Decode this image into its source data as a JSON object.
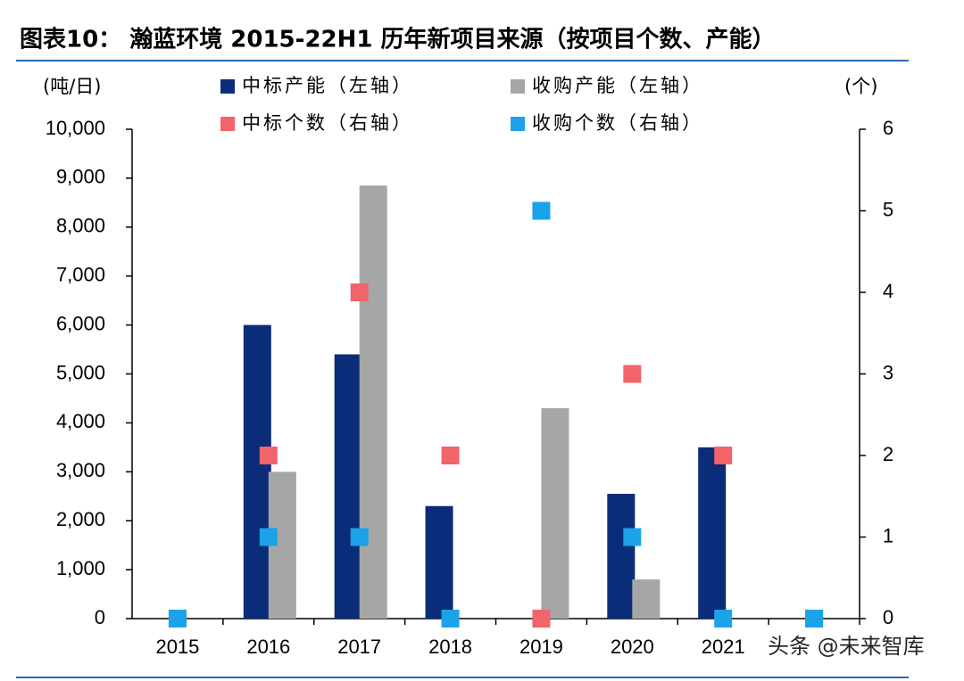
{
  "chart_data": {
    "type": "bar",
    "title": "图表10：  瀚蓝环境 2015-22H1 历年新项目来源（按项目个数、产能）",
    "y_label": "(吨/日)",
    "y2_label": "(个)",
    "categories": [
      "2015",
      "2016",
      "2017",
      "2018",
      "2019",
      "2020",
      "2021",
      null
    ],
    "series": [
      {
        "name": "中标产能（左轴）",
        "color": "#0b2c78",
        "type": "bar",
        "values": [
          0,
          6000,
          5400,
          2300,
          0,
          2550,
          3500,
          0
        ]
      },
      {
        "name": "收购产能（左轴）",
        "color": "#a6a6a6",
        "type": "bar",
        "values": [
          0,
          3000,
          8850,
          0,
          4300,
          800,
          0,
          0
        ]
      },
      {
        "name": "中标个数（右轴）",
        "color": "#f0646a",
        "type": "scatter",
        "axis": "y2",
        "values": [
          0,
          2,
          4,
          2,
          0,
          3,
          2,
          0
        ]
      },
      {
        "name": "收购个数（右轴）",
        "color": "#1aa3e8",
        "type": "scatter",
        "axis": "y2",
        "values": [
          0,
          1,
          1,
          0,
          5,
          1,
          0,
          0
        ]
      }
    ],
    "ylim": [
      0,
      10000
    ],
    "yticks": [
      0,
      {
        "value": 1000,
        "label": "1,000"
      },
      {
        "value": 2000,
        "label": "2,000"
      },
      {
        "value": 3000,
        "label": "3,000"
      },
      {
        "value": 4000,
        "label": "4,000"
      },
      {
        "value": 5000,
        "label": "5,000"
      },
      {
        "value": 6000,
        "label": "6,000"
      },
      {
        "value": 7000,
        "label": "7,000"
      },
      {
        "value": 8000,
        "label": "8,000"
      },
      {
        "value": 9000,
        "label": "9,000"
      },
      {
        "value": 10000,
        "label": "10,000"
      }
    ],
    "y2lim": [
      0,
      6
    ],
    "y2ticks": [
      0,
      1,
      2,
      3,
      4,
      5,
      6
    ],
    "watermark": "头条 @未来智库"
  }
}
